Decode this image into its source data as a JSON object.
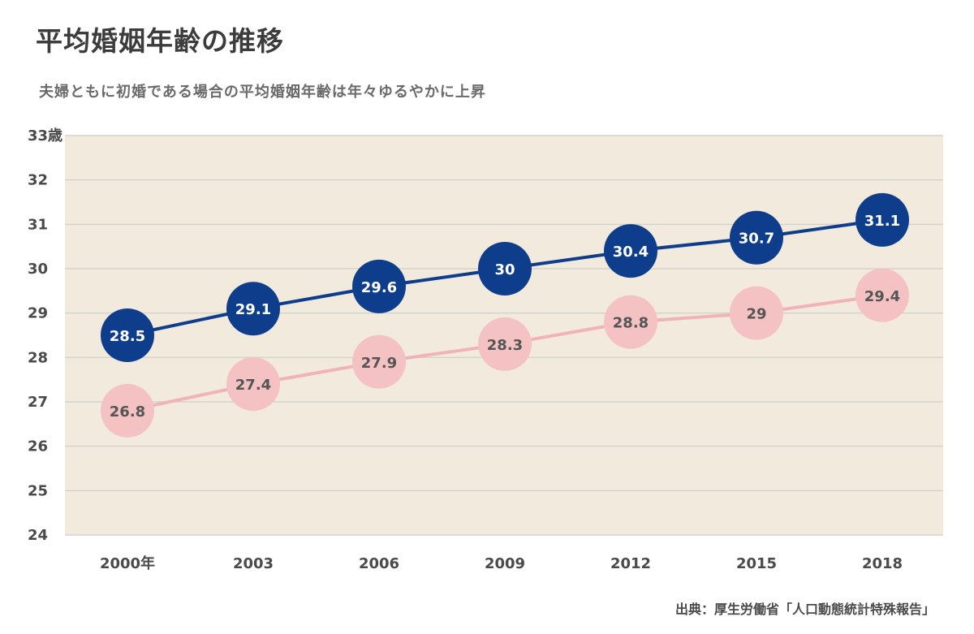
{
  "title": "平均婚姻年齢の推移",
  "subtitle": "夫婦ともに初婚である場合の平均婚姻年齢は年々ゆるやかに上昇",
  "source": "出典：厚生労働省「人口動態統計特殊報告」",
  "colors": {
    "plot_background": "#f2eadc",
    "gridline": "#d5d3cd",
    "series_male": "#0e3d8c",
    "series_female_line": "#f0b4b6",
    "series_female_marker": "#f4c2c3"
  },
  "chart_data": {
    "type": "line",
    "categories": [
      "2000年",
      "2003",
      "2006",
      "2009",
      "2012",
      "2015",
      "2018"
    ],
    "ylim": [
      24,
      33
    ],
    "yticks": [
      "24",
      "25",
      "26",
      "27",
      "28",
      "29",
      "30",
      "31",
      "32",
      "33歳"
    ],
    "grid": true,
    "series": [
      {
        "values": [
          28.5,
          29.1,
          29.6,
          30,
          30.4,
          30.7,
          31.1
        ],
        "labels": [
          "28.5",
          "29.1",
          "29.6",
          "30",
          "30.4",
          "30.7",
          "31.1"
        ]
      },
      {
        "values": [
          26.8,
          27.4,
          27.9,
          28.3,
          28.8,
          29,
          29.4
        ],
        "labels": [
          "26.8",
          "27.4",
          "27.9",
          "28.3",
          "28.8",
          "29",
          "29.4"
        ]
      }
    ]
  }
}
